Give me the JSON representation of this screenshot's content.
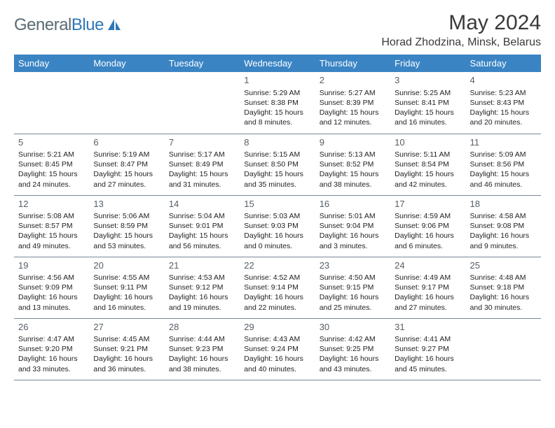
{
  "logo": {
    "part1": "General",
    "part2": "Blue"
  },
  "title": "May 2024",
  "location": "Horad Zhodzina, Minsk, Belarus",
  "colors": {
    "header_bg": "#3a84c4",
    "header_fg": "#ffffff",
    "logo_gray": "#5a6a74",
    "logo_blue": "#2d78b8",
    "border": "#7a8894",
    "daynum": "#555f68",
    "body_text": "#222222",
    "background": "#ffffff"
  },
  "weekdays": [
    "Sunday",
    "Monday",
    "Tuesday",
    "Wednesday",
    "Thursday",
    "Friday",
    "Saturday"
  ],
  "weeks": [
    [
      null,
      null,
      null,
      {
        "n": "1",
        "sr": "5:29 AM",
        "ss": "8:38 PM",
        "dl": "15 hours and 8 minutes."
      },
      {
        "n": "2",
        "sr": "5:27 AM",
        "ss": "8:39 PM",
        "dl": "15 hours and 12 minutes."
      },
      {
        "n": "3",
        "sr": "5:25 AM",
        "ss": "8:41 PM",
        "dl": "15 hours and 16 minutes."
      },
      {
        "n": "4",
        "sr": "5:23 AM",
        "ss": "8:43 PM",
        "dl": "15 hours and 20 minutes."
      }
    ],
    [
      {
        "n": "5",
        "sr": "5:21 AM",
        "ss": "8:45 PM",
        "dl": "15 hours and 24 minutes."
      },
      {
        "n": "6",
        "sr": "5:19 AM",
        "ss": "8:47 PM",
        "dl": "15 hours and 27 minutes."
      },
      {
        "n": "7",
        "sr": "5:17 AM",
        "ss": "8:49 PM",
        "dl": "15 hours and 31 minutes."
      },
      {
        "n": "8",
        "sr": "5:15 AM",
        "ss": "8:50 PM",
        "dl": "15 hours and 35 minutes."
      },
      {
        "n": "9",
        "sr": "5:13 AM",
        "ss": "8:52 PM",
        "dl": "15 hours and 38 minutes."
      },
      {
        "n": "10",
        "sr": "5:11 AM",
        "ss": "8:54 PM",
        "dl": "15 hours and 42 minutes."
      },
      {
        "n": "11",
        "sr": "5:09 AM",
        "ss": "8:56 PM",
        "dl": "15 hours and 46 minutes."
      }
    ],
    [
      {
        "n": "12",
        "sr": "5:08 AM",
        "ss": "8:57 PM",
        "dl": "15 hours and 49 minutes."
      },
      {
        "n": "13",
        "sr": "5:06 AM",
        "ss": "8:59 PM",
        "dl": "15 hours and 53 minutes."
      },
      {
        "n": "14",
        "sr": "5:04 AM",
        "ss": "9:01 PM",
        "dl": "15 hours and 56 minutes."
      },
      {
        "n": "15",
        "sr": "5:03 AM",
        "ss": "9:03 PM",
        "dl": "16 hours and 0 minutes."
      },
      {
        "n": "16",
        "sr": "5:01 AM",
        "ss": "9:04 PM",
        "dl": "16 hours and 3 minutes."
      },
      {
        "n": "17",
        "sr": "4:59 AM",
        "ss": "9:06 PM",
        "dl": "16 hours and 6 minutes."
      },
      {
        "n": "18",
        "sr": "4:58 AM",
        "ss": "9:08 PM",
        "dl": "16 hours and 9 minutes."
      }
    ],
    [
      {
        "n": "19",
        "sr": "4:56 AM",
        "ss": "9:09 PM",
        "dl": "16 hours and 13 minutes."
      },
      {
        "n": "20",
        "sr": "4:55 AM",
        "ss": "9:11 PM",
        "dl": "16 hours and 16 minutes."
      },
      {
        "n": "21",
        "sr": "4:53 AM",
        "ss": "9:12 PM",
        "dl": "16 hours and 19 minutes."
      },
      {
        "n": "22",
        "sr": "4:52 AM",
        "ss": "9:14 PM",
        "dl": "16 hours and 22 minutes."
      },
      {
        "n": "23",
        "sr": "4:50 AM",
        "ss": "9:15 PM",
        "dl": "16 hours and 25 minutes."
      },
      {
        "n": "24",
        "sr": "4:49 AM",
        "ss": "9:17 PM",
        "dl": "16 hours and 27 minutes."
      },
      {
        "n": "25",
        "sr": "4:48 AM",
        "ss": "9:18 PM",
        "dl": "16 hours and 30 minutes."
      }
    ],
    [
      {
        "n": "26",
        "sr": "4:47 AM",
        "ss": "9:20 PM",
        "dl": "16 hours and 33 minutes."
      },
      {
        "n": "27",
        "sr": "4:45 AM",
        "ss": "9:21 PM",
        "dl": "16 hours and 36 minutes."
      },
      {
        "n": "28",
        "sr": "4:44 AM",
        "ss": "9:23 PM",
        "dl": "16 hours and 38 minutes."
      },
      {
        "n": "29",
        "sr": "4:43 AM",
        "ss": "9:24 PM",
        "dl": "16 hours and 40 minutes."
      },
      {
        "n": "30",
        "sr": "4:42 AM",
        "ss": "9:25 PM",
        "dl": "16 hours and 43 minutes."
      },
      {
        "n": "31",
        "sr": "4:41 AM",
        "ss": "9:27 PM",
        "dl": "16 hours and 45 minutes."
      },
      null
    ]
  ],
  "labels": {
    "sunrise": "Sunrise:",
    "sunset": "Sunset:",
    "daylight": "Daylight:"
  }
}
